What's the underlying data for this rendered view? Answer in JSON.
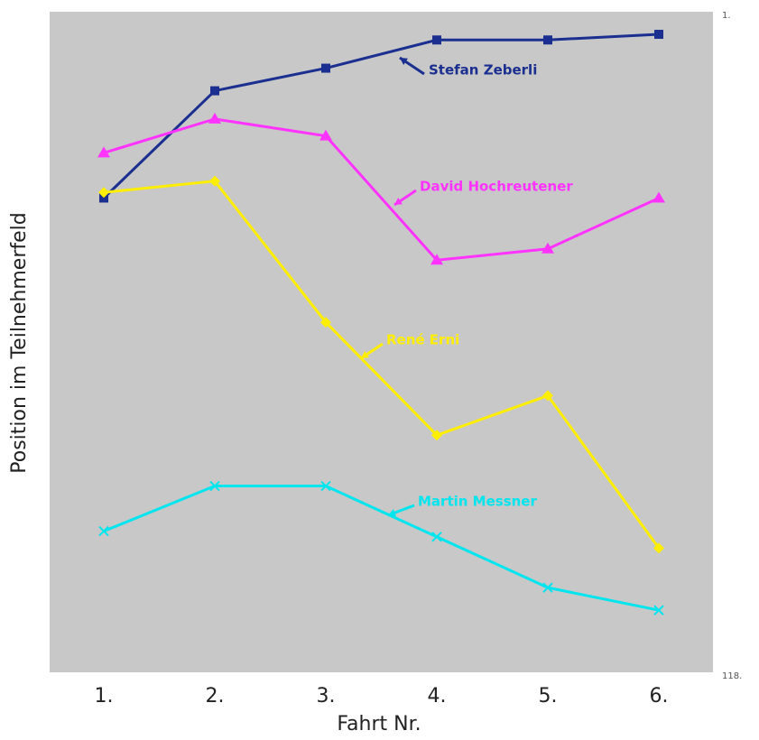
{
  "chart_data": {
    "type": "line",
    "x_label": "Fahrt Nr.",
    "y_label": "Position im Teilnehmerfeld",
    "categories": [
      "1.",
      "2.",
      "3.",
      "4.",
      "5.",
      "6."
    ],
    "ylim": [
      1,
      118
    ],
    "y_inverted": true,
    "yticks": [
      {
        "value": 1,
        "label": "1."
      },
      {
        "value": 118,
        "label": "118."
      }
    ],
    "background": "#c8c8c8",
    "series": [
      {
        "name": "Stefan Zeberli",
        "color": "#1a2f8f",
        "marker": "square",
        "values": [
          34,
          15,
          11,
          6,
          6,
          5
        ]
      },
      {
        "name": "David Hochreutener",
        "color": "#ff33ff",
        "marker": "triangle",
        "values": [
          26,
          20,
          23,
          45,
          43,
          34
        ]
      },
      {
        "name": "René Erni",
        "color": "#ffee00",
        "marker": "diamond",
        "values": [
          33,
          31,
          56,
          76,
          69,
          96
        ]
      },
      {
        "name": "Martin Messner",
        "color": "#00e5ee",
        "marker": "x",
        "values": [
          93,
          85,
          85,
          94,
          103,
          107
        ]
      }
    ]
  }
}
